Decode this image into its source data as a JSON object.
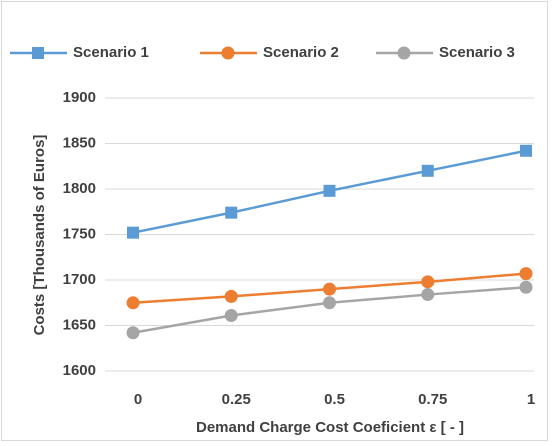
{
  "chart_data": {
    "type": "line",
    "x": [
      0,
      0.25,
      0.5,
      0.75,
      1
    ],
    "xlim": [
      0,
      1
    ],
    "xticks": [
      0,
      0.25,
      0.5,
      0.75,
      1
    ],
    "ylim": [
      1600,
      1900
    ],
    "yticks": [
      1600,
      1650,
      1700,
      1750,
      1800,
      1850,
      1900
    ],
    "x_label": "Demand Charge Cost Coeficient ε [ - ]",
    "y_label": "Costs [Thousands of Euros]",
    "grid": true,
    "legend": "top",
    "series": [
      {
        "name": "Scenario 1",
        "color": "#5b9bd5",
        "marker": "square",
        "values": [
          1752,
          1774,
          1798,
          1820,
          1842
        ]
      },
      {
        "name": "Scenario 2",
        "color": "#ed7d31",
        "marker": "circle",
        "values": [
          1675,
          1682,
          1690,
          1698,
          1707
        ]
      },
      {
        "name": "Scenario 3",
        "color": "#a5a5a5",
        "marker": "circle",
        "values": [
          1642,
          1661,
          1675,
          1684,
          1692
        ]
      }
    ]
  }
}
